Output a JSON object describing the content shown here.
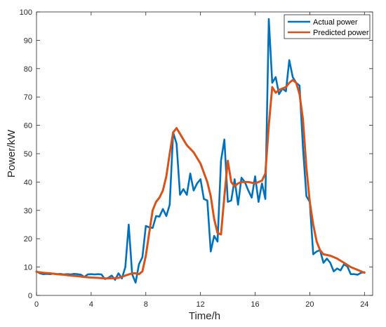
{
  "chart_data": {
    "type": "line",
    "xlabel": "Time/h",
    "ylabel": "Power/kW",
    "xlim": [
      0,
      24.6
    ],
    "ylim": [
      0,
      100
    ],
    "xticks": [
      0,
      4,
      8,
      12,
      16,
      20,
      24
    ],
    "yticks": [
      0,
      10,
      20,
      30,
      40,
      50,
      60,
      70,
      80,
      90,
      100
    ],
    "grid": false,
    "legend_position": "top-right",
    "series": [
      {
        "name": "Actual power",
        "color": "#0072BD",
        "x": [
          0.0,
          0.25,
          0.5,
          0.75,
          1.0,
          1.25,
          1.5,
          1.75,
          2.0,
          2.25,
          2.5,
          2.75,
          3.0,
          3.25,
          3.5,
          3.75,
          4.0,
          4.25,
          4.5,
          4.75,
          5.0,
          5.25,
          5.5,
          5.75,
          6.0,
          6.25,
          6.5,
          6.75,
          7.0,
          7.25,
          7.5,
          7.75,
          8.0,
          8.25,
          8.5,
          8.75,
          9.0,
          9.25,
          9.5,
          9.75,
          10.0,
          10.25,
          10.5,
          10.75,
          11.0,
          11.25,
          11.5,
          11.75,
          12.0,
          12.25,
          12.5,
          12.75,
          13.0,
          13.25,
          13.5,
          13.75,
          14.0,
          14.25,
          14.5,
          14.75,
          15.0,
          15.25,
          15.5,
          15.75,
          16.0,
          16.25,
          16.5,
          16.75,
          17.0,
          17.25,
          17.5,
          17.75,
          18.0,
          18.25,
          18.5,
          18.75,
          19.0,
          19.25,
          19.5,
          19.75,
          20.0,
          20.25,
          20.5,
          20.75,
          21.0,
          21.25,
          21.5,
          21.75,
          22.0,
          22.25,
          22.5,
          22.75,
          23.0,
          23.25,
          23.5,
          23.75,
          24.0
        ],
        "values": [
          8.5,
          7.8,
          7.5,
          7.6,
          7.5,
          7.7,
          7.5,
          7.6,
          7.4,
          7.5,
          7.4,
          7.6,
          7.5,
          7.3,
          6.5,
          7.4,
          7.5,
          7.4,
          7.5,
          7.4,
          5.8,
          6.2,
          7.0,
          5.5,
          7.8,
          6.0,
          10.0,
          25.0,
          7.5,
          4.5,
          11.0,
          13.5,
          24.5,
          24.0,
          23.8,
          28.0,
          27.8,
          30.5,
          28.0,
          32.0,
          57.5,
          53.5,
          35.5,
          37.5,
          35.5,
          43.0,
          37.0,
          39.5,
          41.0,
          34.0,
          33.5,
          15.5,
          21.0,
          19.0,
          47.5,
          55.0,
          33.0,
          33.5,
          41.0,
          32.0,
          41.5,
          40.0,
          37.0,
          34.5,
          42.0,
          33.0,
          39.5,
          34.0,
          97.5,
          75.0,
          77.0,
          71.0,
          73.0,
          72.0,
          83.0,
          77.0,
          75.0,
          74.0,
          52.0,
          35.0,
          33.0,
          14.5,
          15.5,
          16.0,
          11.5,
          13.0,
          11.5,
          8.5,
          9.5,
          8.8,
          11.0,
          10.2,
          7.5,
          7.5,
          7.3,
          8.0,
          8.2
        ]
      },
      {
        "name": "Predicted power",
        "color": "#D95319",
        "x": [
          0.0,
          0.5,
          1.0,
          1.5,
          2.0,
          2.5,
          3.0,
          3.5,
          4.0,
          4.5,
          5.0,
          5.5,
          6.0,
          6.5,
          7.0,
          7.25,
          7.5,
          7.75,
          8.0,
          8.25,
          8.5,
          8.75,
          9.0,
          9.25,
          9.5,
          9.75,
          10.0,
          10.25,
          10.5,
          10.75,
          11.0,
          11.5,
          12.0,
          12.5,
          12.75,
          13.0,
          13.25,
          13.5,
          13.75,
          14.0,
          14.25,
          14.5,
          14.75,
          15.0,
          15.5,
          16.0,
          16.5,
          16.75,
          17.0,
          17.25,
          17.5,
          17.75,
          18.0,
          18.25,
          18.5,
          18.75,
          19.0,
          19.25,
          19.5,
          19.75,
          20.0,
          20.25,
          20.5,
          20.75,
          21.0,
          21.5,
          22.0,
          22.5,
          23.0,
          23.5,
          24.0
        ],
        "values": [
          8.3,
          8.0,
          7.8,
          7.5,
          7.3,
          7.0,
          6.8,
          6.5,
          6.3,
          6.2,
          6.0,
          6.0,
          6.2,
          7.0,
          7.8,
          7.8,
          7.5,
          8.5,
          14.0,
          22.0,
          30.0,
          33.0,
          34.5,
          37.0,
          42.0,
          50.0,
          57.5,
          59.0,
          57.0,
          55.0,
          53.0,
          50.5,
          46.5,
          40.0,
          35.0,
          27.0,
          22.0,
          21.5,
          35.0,
          47.5,
          40.0,
          38.5,
          39.5,
          40.0,
          40.0,
          39.5,
          40.5,
          43.0,
          60.0,
          73.5,
          71.5,
          72.5,
          73.0,
          73.5,
          75.0,
          76.0,
          75.0,
          71.0,
          62.0,
          45.0,
          33.0,
          25.0,
          19.0,
          16.0,
          14.5,
          14.0,
          13.0,
          11.5,
          10.0,
          9.0,
          8.0
        ]
      }
    ]
  }
}
